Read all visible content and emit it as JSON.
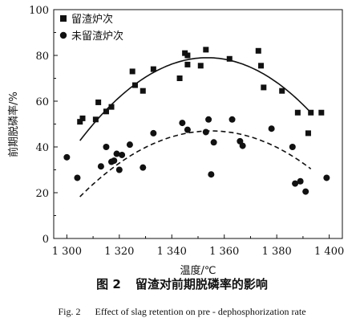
{
  "figure": {
    "caption_cn_number": "图 2",
    "caption_cn_text": "留渣对前期脱磷率的影响",
    "caption_en_number": "Fig. 2",
    "caption_en_text": "Effect of slag retention on pre - dephosphorization rate"
  },
  "chart_data": {
    "type": "scatter",
    "xlabel": "温度/℃",
    "ylabel": "前期脱磷率/%",
    "xlim": [
      1295,
      1405
    ],
    "ylim": [
      0,
      100
    ],
    "x_ticks": [
      1300,
      1320,
      1340,
      1360,
      1380,
      1400
    ],
    "x_tick_labels": [
      "1 300",
      "1 320",
      "1 340",
      "1 360",
      "1 380",
      "1 400"
    ],
    "y_ticks": [
      0,
      20,
      40,
      60,
      80,
      100
    ],
    "y_tick_labels": [
      "0",
      "20",
      "40",
      "60",
      "80",
      "100"
    ],
    "legend_position": "top-left",
    "series": [
      {
        "name": "留渣炉次",
        "marker": "square",
        "color": "#111111",
        "points": [
          [
            1305,
            51
          ],
          [
            1306,
            52.5
          ],
          [
            1311,
            52
          ],
          [
            1312,
            59.5
          ],
          [
            1315,
            55.5
          ],
          [
            1317,
            57.5
          ],
          [
            1325,
            73
          ],
          [
            1326,
            67
          ],
          [
            1329,
            64.5
          ],
          [
            1333,
            74
          ],
          [
            1343,
            70
          ],
          [
            1345,
            81
          ],
          [
            1346,
            80
          ],
          [
            1346,
            76
          ],
          [
            1351,
            75.5
          ],
          [
            1353,
            82.5
          ],
          [
            1362,
            78.5
          ],
          [
            1373,
            82
          ],
          [
            1374,
            75.5
          ],
          [
            1375,
            66
          ],
          [
            1382,
            64.5
          ],
          [
            1388,
            55
          ],
          [
            1392,
            46
          ],
          [
            1393,
            55
          ],
          [
            1397,
            55
          ]
        ]
      },
      {
        "name": "未留渣炉次",
        "marker": "circle",
        "color": "#111111",
        "points": [
          [
            1300,
            35.5
          ],
          [
            1304,
            26.5
          ],
          [
            1313,
            31.5
          ],
          [
            1315,
            40
          ],
          [
            1317,
            33.5
          ],
          [
            1318,
            34
          ],
          [
            1319,
            37
          ],
          [
            1320,
            30
          ],
          [
            1321,
            36.5
          ],
          [
            1324,
            41
          ],
          [
            1329,
            31
          ],
          [
            1333,
            46
          ],
          [
            1344,
            50.5
          ],
          [
            1346,
            47.5
          ],
          [
            1353,
            46.5
          ],
          [
            1354,
            52
          ],
          [
            1355,
            28
          ],
          [
            1356,
            42
          ],
          [
            1363,
            52
          ],
          [
            1366,
            42.5
          ],
          [
            1367,
            40.5
          ],
          [
            1378,
            48
          ],
          [
            1386,
            40
          ],
          [
            1387,
            24
          ],
          [
            1389,
            25
          ],
          [
            1391,
            20.5
          ],
          [
            1399,
            26.5
          ]
        ]
      }
    ],
    "fit_curves": [
      {
        "series": "留渣炉次",
        "style": "solid",
        "coef": [
          -0.0154,
          1353.5,
          79
        ]
      },
      {
        "series": "未留渣炉次",
        "style": "dashed",
        "coef": [
          -0.0115,
          1355,
          47
        ]
      }
    ],
    "fit_ranges": [
      [
        1305,
        1393
      ],
      [
        1305,
        1393
      ]
    ]
  }
}
